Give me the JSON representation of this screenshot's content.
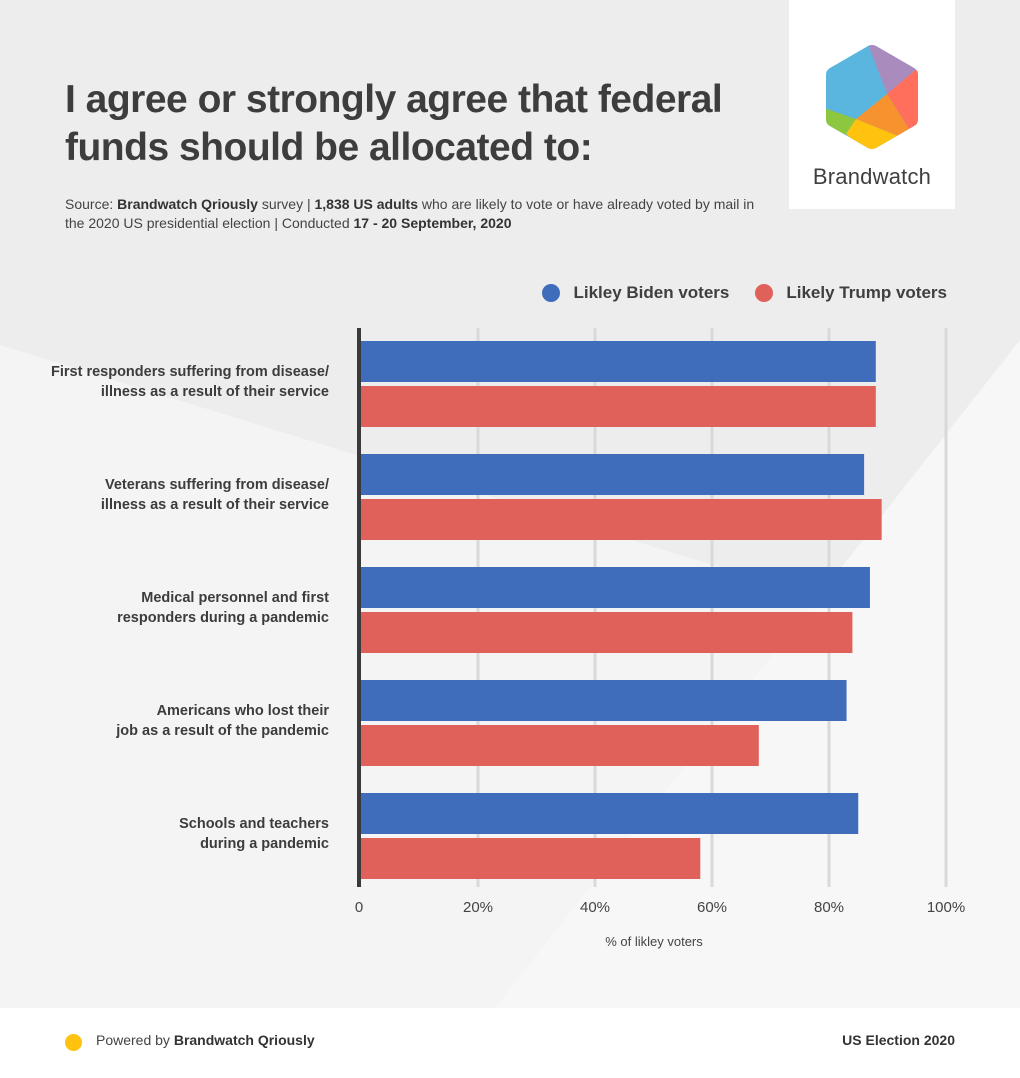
{
  "header": {
    "title": "I agree or strongly agree that federal funds should be allocated to:",
    "source": {
      "prefix": "Source: ",
      "brand": "Brandwatch Qriously",
      "survey": " survey  |  ",
      "sample": "1,838 US adults",
      "desc": " who are likely to vote or have already voted by mail in the 2020 US presidential election | Conducted ",
      "dates": "17 - 20 September, 2020"
    }
  },
  "logo": {
    "wordmark": "Brandwatch",
    "icon": "brandwatch-hexagon-icon"
  },
  "colors": {
    "biden": "#3f6dbb",
    "trump": "#e0605a",
    "axis": "#3a3a3a",
    "grid": "#d9d9d9",
    "footer_dot": "#ffc20e"
  },
  "chart_data": {
    "type": "bar",
    "orientation": "horizontal",
    "title": "I agree or strongly agree that federal funds should be allocated to:",
    "categories": [
      "First responders suffering from disease/ illness as a result of their service",
      "Veterans suffering from disease/ illness as a result of their service",
      "Medical personnel and first responders during a pandemic",
      "Americans who lost their job as a result of the pandemic",
      "Schools and teachers during a pandemic"
    ],
    "category_lines": [
      [
        "First responders suffering from disease/",
        "illness as a result of their service"
      ],
      [
        "Veterans suffering from disease/",
        "illness as a result of their service"
      ],
      [
        "Medical personnel and first",
        "responders during a pandemic"
      ],
      [
        "Americans who lost their",
        "job as a result of the pandemic"
      ],
      [
        "Schools and teachers",
        "during a pandemic"
      ]
    ],
    "series": [
      {
        "name": "Likley Biden voters",
        "color": "#3f6dbb",
        "values": [
          88,
          86,
          87,
          83,
          85
        ]
      },
      {
        "name": "Likely Trump voters",
        "color": "#e0605a",
        "values": [
          88,
          89,
          84,
          68,
          58
        ]
      }
    ],
    "xlabel": "% of likley voters",
    "ylabel": "",
    "xlim": [
      0,
      100
    ],
    "xticks": [
      0,
      20,
      40,
      60,
      80,
      100
    ],
    "xtick_labels": [
      "0",
      "20%",
      "40%",
      "60%",
      "80%",
      "100%"
    ],
    "grid": true,
    "legend": "top-right"
  },
  "footer": {
    "powered_prefix": "Powered by ",
    "powered_brand": "Brandwatch Qriously",
    "right_label": "US Election 2020"
  }
}
